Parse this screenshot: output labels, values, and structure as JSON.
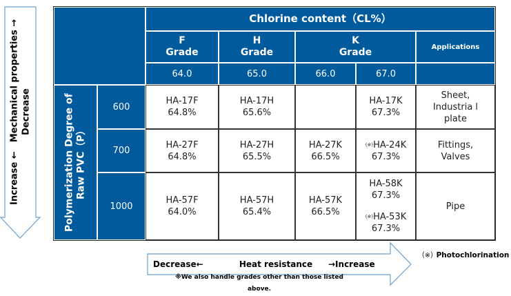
{
  "header": {
    "title": "Chlorine content（CL%）",
    "applications": "Applications"
  },
  "grades": [
    {
      "line1": "F",
      "line2": "Grade",
      "cl": "64.0"
    },
    {
      "line1": "H",
      "line2": "Grade",
      "cl": "65.0"
    },
    {
      "line1": "K",
      "line2": "Grade",
      "cl": [
        "66.0",
        "67.0"
      ]
    }
  ],
  "row_header": "Polymerization Degree of Raw PVC（P）",
  "rows": [
    {
      "p": "600",
      "f": [
        "HA-17F",
        "64.8%"
      ],
      "h": [
        "HA-17H",
        "65.6%"
      ],
      "k66": [
        "",
        ""
      ],
      "k67": [
        "HA-17K",
        "67.3%"
      ],
      "app": "Sheet, Industria l plate"
    },
    {
      "p": "700",
      "f": [
        "HA-27F",
        "64.8%"
      ],
      "h": [
        "HA-27H",
        "65.5%"
      ],
      "k66": [
        "HA-27K",
        "66.5%"
      ],
      "k67": [
        "HA-24K",
        "67.3%"
      ],
      "app": "Fittings, Valves"
    },
    {
      "p": "1000",
      "f": [
        "HA-57F",
        "64.0%"
      ],
      "h": [
        "HA-57H",
        "65.4%"
      ],
      "k66": [
        "HA-57K",
        "66.5%"
      ],
      "k67": [
        "HA-58K",
        "67.3%",
        "HA-53K",
        "67.3%"
      ],
      "app": "Pipe"
    }
  ],
  "mark": "(※)",
  "left_arrow": "Increase ←　Mechanical properties → Decrease",
  "bottom_arrow": {
    "left": "Decrease←",
    "center": "Heat resistance",
    "right": "→Increase"
  },
  "legend": {
    "mark": "（※）",
    "text": "Photochlorination"
  },
  "footnote": "※We also handle grades other than those listed above."
}
